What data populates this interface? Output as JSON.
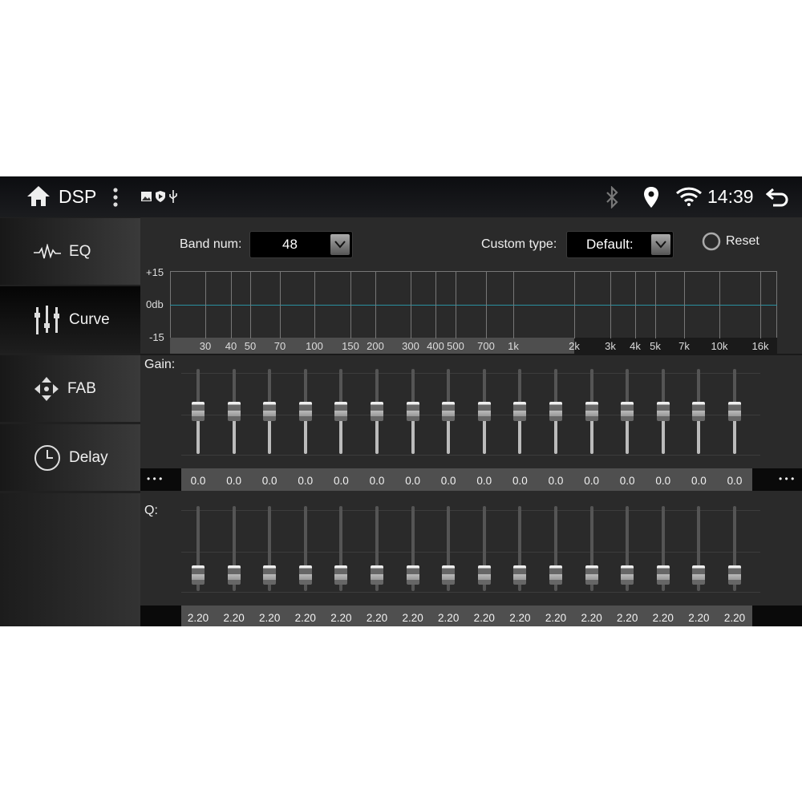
{
  "statusbar": {
    "title": "DSP",
    "time": "14:39",
    "icons": [
      "home-icon",
      "more-vert-icon",
      "image-icon",
      "shield-play-icon",
      "usb-icon",
      "bluetooth-icon",
      "location-icon",
      "wifi-icon",
      "back-icon"
    ]
  },
  "sidebar": {
    "items": [
      {
        "label": "EQ",
        "icon": "waveform-icon"
      },
      {
        "label": "Curve",
        "icon": "sliders-icon",
        "selected": true
      },
      {
        "label": "FAB",
        "icon": "fader-balance-icon"
      },
      {
        "label": "Delay",
        "icon": "clock-icon"
      }
    ]
  },
  "controls": {
    "band_label": "Band num:",
    "band_value": "48",
    "custom_label": "Custom type:",
    "custom_value": "Default:",
    "reset_label": "Reset"
  },
  "chart": {
    "y_ticks": [
      "+15",
      "0db",
      "-15"
    ],
    "freqs": [
      "30",
      "40",
      "50",
      "70",
      "100",
      "150",
      "200",
      "300",
      "400",
      "500",
      "700",
      "1k",
      "2k",
      "3k",
      "4k",
      "5k",
      "7k",
      "10k",
      "16k"
    ],
    "curve_db": 0,
    "curve_color": "#2a8fa0"
  },
  "gain": {
    "label": "Gain:",
    "range": [
      -15,
      15
    ],
    "values": [
      "0.0",
      "0.0",
      "0.0",
      "0.0",
      "0.0",
      "0.0",
      "0.0",
      "0.0",
      "0.0",
      "0.0",
      "0.0",
      "0.0",
      "0.0",
      "0.0",
      "0.0",
      "0.0"
    ],
    "more": "• • •"
  },
  "q": {
    "label": "Q:",
    "values": [
      "2.20",
      "2.20",
      "2.20",
      "2.20",
      "2.20",
      "2.20",
      "2.20",
      "2.20",
      "2.20",
      "2.20",
      "2.20",
      "2.20",
      "2.20",
      "2.20",
      "2.20",
      "2.20"
    ]
  }
}
